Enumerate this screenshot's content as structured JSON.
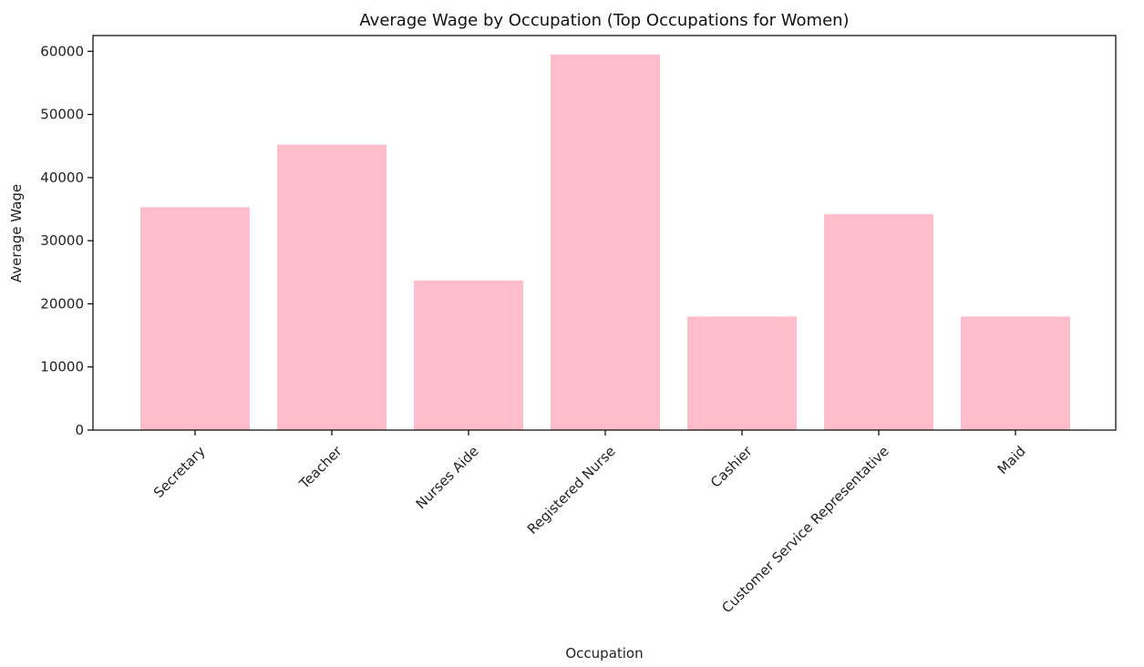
{
  "chart_data": {
    "type": "bar",
    "title": "Average Wage by Occupation (Top Occupations for Women)",
    "xlabel": "Occupation",
    "ylabel": "Average Wage",
    "categories": [
      "Secretary",
      "Teacher",
      "Nurses Aide",
      "Registered Nurse",
      "Cashier",
      "Customer Service Representative",
      "Maid"
    ],
    "values": [
      35300,
      45200,
      23700,
      59500,
      18000,
      34200,
      18000
    ],
    "ylim": [
      0,
      62500
    ],
    "yticks": [
      0,
      10000,
      20000,
      30000,
      40000,
      50000,
      60000
    ],
    "ytick_labels": [
      "0",
      "10000",
      "20000",
      "30000",
      "40000",
      "50000",
      "60000"
    ],
    "grid": false,
    "colors": {
      "bar": "#ffbccb",
      "axis": "#000000",
      "text": "#222222"
    }
  }
}
